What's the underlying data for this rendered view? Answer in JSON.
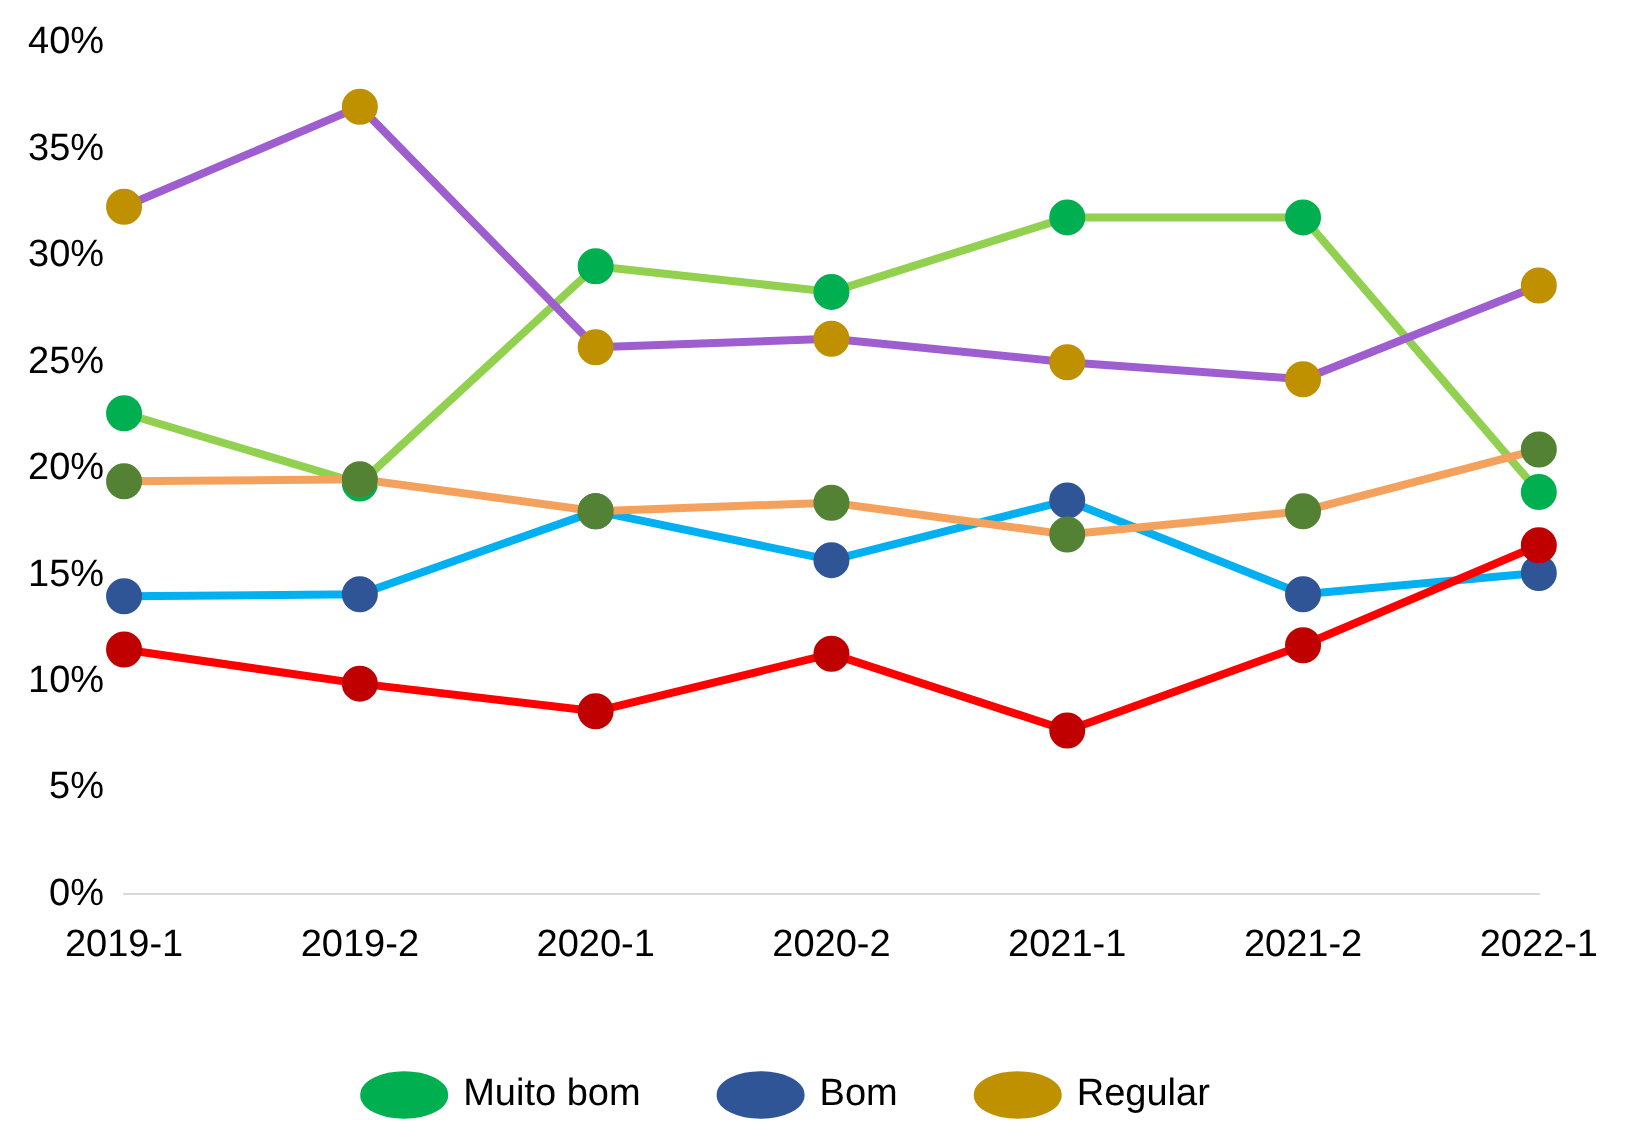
{
  "chart_data": {
    "type": "line",
    "categories": [
      "2019-1",
      "2019-2",
      "2020-1",
      "2020-2",
      "2021-1",
      "2021-2",
      "2022-1"
    ],
    "ylim": [
      0,
      40
    ],
    "yticks": [
      {
        "value": 0,
        "label": "0%"
      },
      {
        "value": 5,
        "label": "5%"
      },
      {
        "value": 10,
        "label": "10%"
      },
      {
        "value": 15,
        "label": "15%"
      },
      {
        "value": 20,
        "label": "20%"
      },
      {
        "value": 25,
        "label": "25%"
      },
      {
        "value": 30,
        "label": "30%"
      },
      {
        "value": 35,
        "label": "35%"
      },
      {
        "value": 40,
        "label": "40%"
      }
    ],
    "grid": false,
    "legend": "bottom",
    "marker": "circle",
    "series": [
      {
        "name": "Muito bom",
        "color": "#92d050",
        "colors": [
          "#00b050",
          "#00b050",
          "#00b050",
          "#00b050",
          "#00b050",
          "#00b050",
          "#00b050"
        ],
        "values": [
          22.6,
          19.3,
          29.5,
          28.3,
          31.8,
          31.8,
          18.9
        ]
      },
      {
        "name": "Bom",
        "color": "#00b0f0",
        "colors": [
          "#2f5597",
          "#2f5597",
          "#2f5597",
          "#2f5597",
          "#2f5597",
          "#2f5597",
          "#2f5597"
        ],
        "values": [
          14.0,
          14.1,
          18.0,
          15.7,
          18.5,
          14.1,
          15.1
        ]
      },
      {
        "name": "Regular",
        "color": "#9e5ecf",
        "colors": [
          "#bf9000",
          "#bf9000",
          "#bf9000",
          "#bf9000",
          "#bf9000",
          "#bf9000",
          "#bf9000"
        ],
        "values": [
          32.3,
          37.0,
          25.7,
          26.1,
          25.0,
          24.2,
          28.6
        ]
      },
      {
        "color": "#f4a15d",
        "colors": [
          "#548235",
          "#548235",
          "#548235",
          "#548235",
          "#548235",
          "#548235",
          "#548235"
        ],
        "values": [
          19.4,
          19.5,
          18.0,
          18.4,
          16.9,
          18.0,
          20.9
        ]
      },
      {
        "color": "#ff0000",
        "colors": [
          "#c00000",
          "#c00000",
          "#c00000",
          "#c00000",
          "#c00000",
          "#c00000",
          "#c00000"
        ],
        "values": [
          11.5,
          9.9,
          8.6,
          11.3,
          7.7,
          11.7,
          16.4
        ]
      }
    ]
  }
}
